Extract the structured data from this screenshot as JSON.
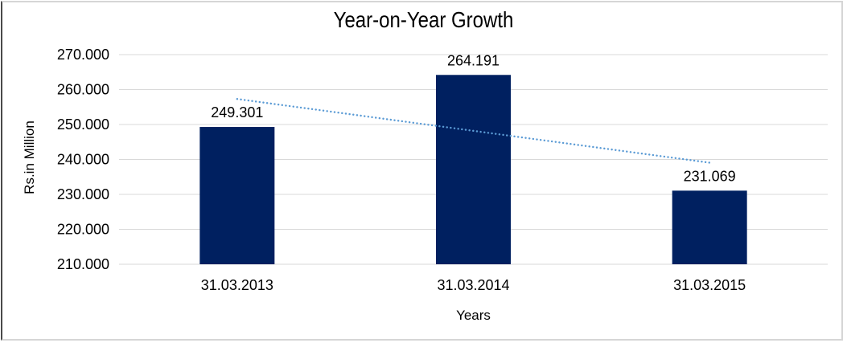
{
  "chart_data": {
    "type": "bar",
    "title": "Year-on-Year Growth",
    "xlabel": "Years",
    "ylabel": "Rs.in Million",
    "categories": [
      "31.03.2013",
      "31.03.2014",
      "31.03.2015"
    ],
    "values": [
      249.301,
      264.191,
      231.069
    ],
    "value_labels": [
      "249.301",
      "264.191",
      "231.069"
    ],
    "ylim": [
      210,
      270
    ],
    "y_ticks": [
      {
        "value": 210,
        "label": "210.000"
      },
      {
        "value": 220,
        "label": "220.000"
      },
      {
        "value": 230,
        "label": "230.000"
      },
      {
        "value": 240,
        "label": "240.000"
      },
      {
        "value": 250,
        "label": "250.000"
      },
      {
        "value": 260,
        "label": "260.000"
      },
      {
        "value": 270,
        "label": "270.000"
      }
    ],
    "grid": "horizontal",
    "legend_position": "none",
    "trendline": {
      "type": "linear",
      "style": "dotted"
    },
    "colors": {
      "bar": "#002060",
      "trendline": "#5B9BD5",
      "gridline": "#D9D9D9",
      "text": "#000000",
      "frame_light": "#d6d6d6",
      "frame_dark": "#4a4a4a"
    }
  }
}
